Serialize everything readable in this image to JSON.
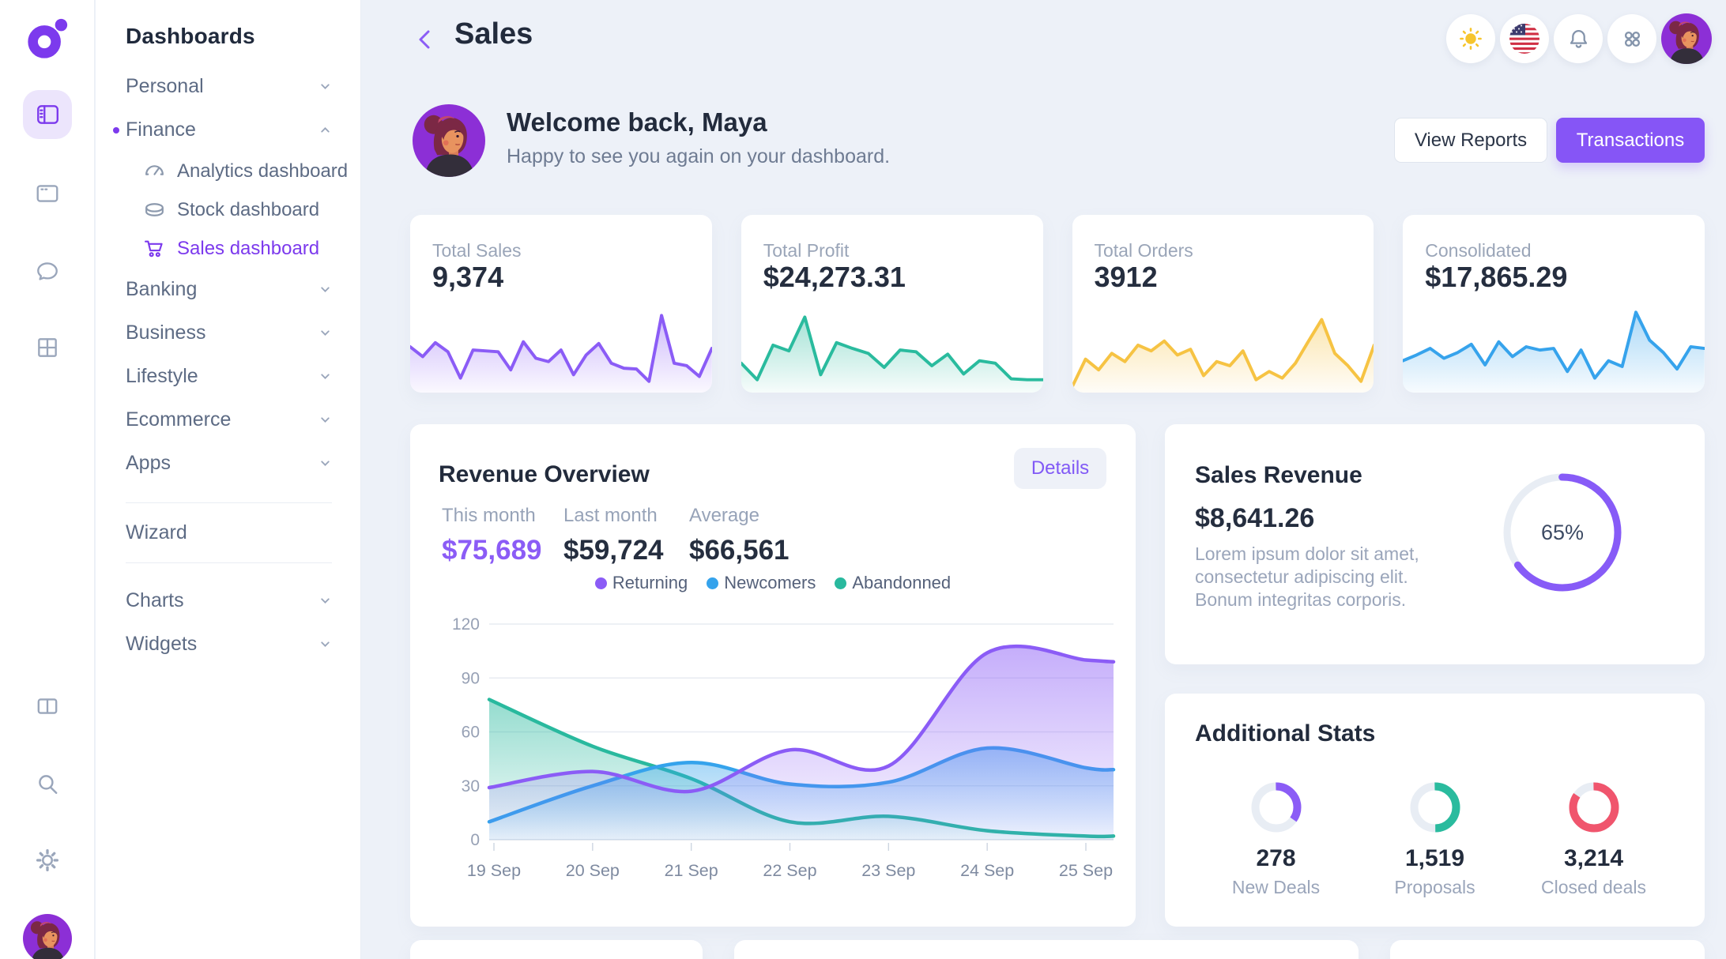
{
  "topbar": {
    "title": "Sales",
    "actions": [
      "theme-sun",
      "language-us-flag",
      "notifications-bell",
      "apps-grid",
      "profile-avatar"
    ]
  },
  "rail_icons": [
    "logo",
    "panels",
    "window",
    "chat",
    "grid",
    "columns",
    "search",
    "gear",
    "profile-avatar"
  ],
  "sidebar": {
    "title": "Dashboards",
    "items": [
      {
        "label": "Personal"
      },
      {
        "label": "Finance",
        "active": true,
        "expanded": true
      },
      {
        "label": "Banking"
      },
      {
        "label": "Business"
      },
      {
        "label": "Lifestyle"
      },
      {
        "label": "Ecommerce"
      },
      {
        "label": "Apps"
      }
    ],
    "finance_children": [
      {
        "label": "Analytics dashboard",
        "icon": "gauge-icon"
      },
      {
        "label": "Stock dashboard",
        "icon": "database-icon"
      },
      {
        "label": "Sales dashboard",
        "icon": "cart-icon",
        "active": true
      }
    ],
    "wizard_label": "Wizard",
    "bottom_items": [
      {
        "label": "Charts"
      },
      {
        "label": "Widgets"
      }
    ]
  },
  "welcome": {
    "title": "Welcome back, Maya",
    "subtitle": "Happy to see you again on your dashboard.",
    "buttons": {
      "secondary": "View Reports",
      "primary": "Transactions"
    }
  },
  "stat_cards": [
    {
      "label": "Total Sales",
      "value": "9,374",
      "color": "#8b5cf6",
      "spark": [
        50,
        38,
        55,
        44,
        12,
        46,
        45,
        44,
        22,
        56,
        36,
        32,
        46,
        16,
        40,
        54,
        30,
        24,
        23,
        8,
        88,
        30,
        27,
        14,
        48
      ]
    },
    {
      "label": "Total Profit",
      "value": "$24,273.31",
      "color": "#2abb9e",
      "spark": [
        30,
        10,
        52,
        45,
        86,
        16,
        55,
        48,
        42,
        25,
        46,
        44,
        27,
        41,
        17,
        33,
        30,
        11,
        10,
        10
      ]
    },
    {
      "label": "Total Orders",
      "value": "3912",
      "color": "#f6c343",
      "spark": [
        2,
        35,
        22,
        42,
        32,
        52,
        45,
        57,
        40,
        47,
        15,
        32,
        27,
        45,
        10,
        20,
        12,
        30,
        57,
        83,
        42,
        27,
        8,
        52
      ]
    },
    {
      "label": "Consolidated",
      "value": "$17,865.29",
      "color": "#36a3ec",
      "spark": [
        33,
        40,
        48,
        36,
        43,
        53,
        28,
        56,
        38,
        50,
        46,
        48,
        20,
        46,
        12,
        33,
        26,
        92,
        58,
        43,
        23,
        50,
        48
      ]
    }
  ],
  "revenue_overview": {
    "title": "Revenue Overview",
    "details_button": "Details",
    "stats": [
      {
        "label": "This month",
        "value": "$75,689",
        "highlight": true
      },
      {
        "label": "Last month",
        "value": "$59,724"
      },
      {
        "label": "Average",
        "value": "$66,561"
      }
    ],
    "chart_data": {
      "type": "area",
      "x_labels": [
        "19 Sep",
        "20 Sep",
        "21 Sep",
        "22 Sep",
        "23 Sep",
        "24 Sep",
        "25 Sep"
      ],
      "ylim": [
        0,
        120
      ],
      "yticks": [
        0,
        30,
        60,
        90,
        120
      ],
      "grid": true,
      "legend_position": "top-center",
      "series": [
        {
          "name": "Returning",
          "color": "#8b5cf6",
          "values": [
            29,
            38,
            27,
            50,
            41,
            104,
            100
          ],
          "edge_value": 99
        },
        {
          "name": "Newcomers",
          "color": "#35a3ec",
          "values": [
            10,
            30,
            43,
            31,
            32,
            51,
            40
          ],
          "edge_value": 39
        },
        {
          "name": "Abandonned",
          "color": "#29b99e",
          "values": [
            78,
            52,
            34,
            10,
            13,
            5,
            2
          ],
          "edge_value": 2
        }
      ]
    }
  },
  "sales_revenue": {
    "title": "Sales Revenue",
    "value": "$8,641.26",
    "description": "Lorem ipsum dolor sit amet, consectetur adipiscing elit. Bonum integritas corporis.",
    "donut": {
      "pct": 65,
      "label": "65%",
      "color": "#875bf7"
    }
  },
  "additional_stats": {
    "title": "Additional Stats",
    "items": [
      {
        "value": "278",
        "label": "New Deals",
        "donut": {
          "pct": 35,
          "color": "#8b5cf6"
        }
      },
      {
        "value": "1,519",
        "label": "Proposals",
        "donut": {
          "pct": 50,
          "color": "#2abb9e"
        }
      },
      {
        "value": "3,214",
        "label": "Closed deals",
        "donut": {
          "pct": 85,
          "color": "#f0556d"
        }
      }
    ]
  }
}
